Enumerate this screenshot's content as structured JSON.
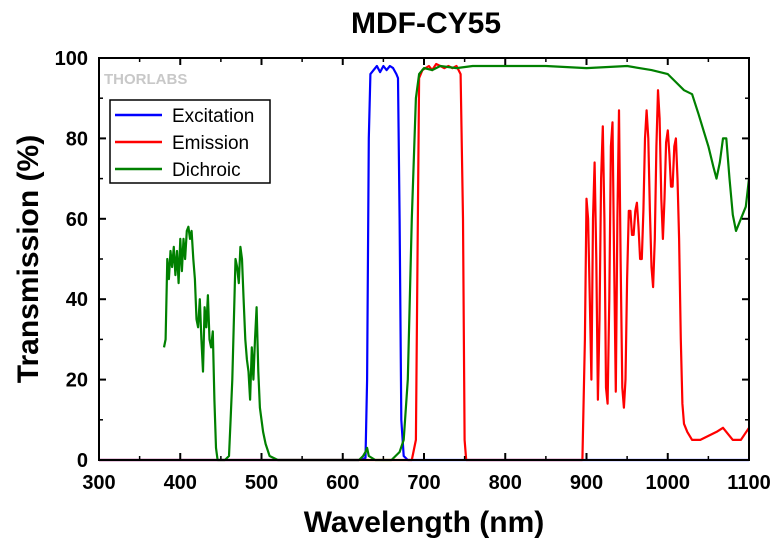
{
  "chart_data": {
    "type": "line",
    "title": "MDF-CY55",
    "xlabel": "Wavelength (nm)",
    "ylabel": "Transmission (%)",
    "xlim": [
      300,
      1100
    ],
    "ylim": [
      0,
      100
    ],
    "xticks": [
      300,
      400,
      500,
      600,
      700,
      800,
      900,
      1000,
      1100
    ],
    "yticks": [
      0,
      20,
      40,
      60,
      80,
      100
    ],
    "grid": false,
    "legend_position": "top-left",
    "watermark": "THORLABS",
    "series": [
      {
        "name": "Excitation",
        "color": "#0000ff",
        "points": [
          [
            300,
            0
          ],
          [
            620,
            0
          ],
          [
            628,
            0.5
          ],
          [
            630,
            20
          ],
          [
            632,
            80
          ],
          [
            634,
            96
          ],
          [
            638,
            97
          ],
          [
            642,
            98
          ],
          [
            646,
            96.5
          ],
          [
            650,
            98
          ],
          [
            654,
            97
          ],
          [
            658,
            98
          ],
          [
            662,
            97.5
          ],
          [
            666,
            96
          ],
          [
            668,
            95
          ],
          [
            670,
            60
          ],
          [
            672,
            10
          ],
          [
            675,
            1
          ],
          [
            680,
            0
          ],
          [
            1100,
            0
          ]
        ]
      },
      {
        "name": "Emission",
        "color": "#ff0000",
        "points": [
          [
            300,
            0
          ],
          [
            685,
            0
          ],
          [
            690,
            5
          ],
          [
            692,
            50
          ],
          [
            694,
            95
          ],
          [
            698,
            97
          ],
          [
            702,
            97.5
          ],
          [
            706,
            98
          ],
          [
            710,
            97
          ],
          [
            715,
            98.5
          ],
          [
            720,
            98
          ],
          [
            725,
            97.5
          ],
          [
            730,
            98
          ],
          [
            735,
            97.5
          ],
          [
            740,
            98
          ],
          [
            745,
            96
          ],
          [
            748,
            60
          ],
          [
            750,
            5
          ],
          [
            752,
            0
          ],
          [
            895,
            0
          ],
          [
            898,
            30
          ],
          [
            900,
            65
          ],
          [
            902,
            60
          ],
          [
            904,
            40
          ],
          [
            906,
            20
          ],
          [
            908,
            60
          ],
          [
            910,
            74
          ],
          [
            912,
            50
          ],
          [
            914,
            15
          ],
          [
            916,
            35
          ],
          [
            918,
            70
          ],
          [
            920,
            83
          ],
          [
            922,
            60
          ],
          [
            924,
            18
          ],
          [
            926,
            14
          ],
          [
            928,
            40
          ],
          [
            930,
            78
          ],
          [
            932,
            84
          ],
          [
            934,
            50
          ],
          [
            936,
            17
          ],
          [
            938,
            60
          ],
          [
            940,
            87
          ],
          [
            942,
            50
          ],
          [
            944,
            18
          ],
          [
            946,
            13
          ],
          [
            948,
            20
          ],
          [
            950,
            45
          ],
          [
            952,
            62
          ],
          [
            954,
            62
          ],
          [
            956,
            56
          ],
          [
            958,
            56
          ],
          [
            960,
            62
          ],
          [
            962,
            64
          ],
          [
            964,
            58
          ],
          [
            966,
            50
          ],
          [
            968,
            50
          ],
          [
            970,
            62
          ],
          [
            972,
            80
          ],
          [
            974,
            87
          ],
          [
            976,
            80
          ],
          [
            978,
            62
          ],
          [
            980,
            48
          ],
          [
            982,
            43
          ],
          [
            984,
            55
          ],
          [
            986,
            78
          ],
          [
            988,
            92
          ],
          [
            990,
            85
          ],
          [
            992,
            65
          ],
          [
            994,
            55
          ],
          [
            996,
            65
          ],
          [
            998,
            79
          ],
          [
            1000,
            82
          ],
          [
            1002,
            76
          ],
          [
            1004,
            68
          ],
          [
            1006,
            68
          ],
          [
            1008,
            78
          ],
          [
            1010,
            80
          ],
          [
            1012,
            70
          ],
          [
            1014,
            55
          ],
          [
            1016,
            30
          ],
          [
            1018,
            14
          ],
          [
            1020,
            9
          ],
          [
            1024,
            7
          ],
          [
            1030,
            5
          ],
          [
            1040,
            5
          ],
          [
            1050,
            6
          ],
          [
            1060,
            7
          ],
          [
            1068,
            8
          ],
          [
            1080,
            5
          ],
          [
            1090,
            5
          ],
          [
            1100,
            8
          ]
        ]
      },
      {
        "name": "Dichroic",
        "color": "#008000",
        "points": [
          [
            380,
            28
          ],
          [
            382,
            30
          ],
          [
            384,
            50
          ],
          [
            386,
            45
          ],
          [
            388,
            52
          ],
          [
            390,
            48
          ],
          [
            392,
            53
          ],
          [
            394,
            46
          ],
          [
            396,
            52
          ],
          [
            398,
            44
          ],
          [
            400,
            55
          ],
          [
            402,
            47
          ],
          [
            404,
            55
          ],
          [
            406,
            50
          ],
          [
            408,
            57
          ],
          [
            410,
            58
          ],
          [
            412,
            55
          ],
          [
            414,
            57
          ],
          [
            416,
            50
          ],
          [
            418,
            45
          ],
          [
            420,
            35
          ],
          [
            422,
            33
          ],
          [
            424,
            40
          ],
          [
            426,
            30
          ],
          [
            428,
            22
          ],
          [
            430,
            38
          ],
          [
            432,
            33
          ],
          [
            434,
            41
          ],
          [
            436,
            30
          ],
          [
            438,
            28
          ],
          [
            440,
            32
          ],
          [
            442,
            15
          ],
          [
            444,
            3
          ],
          [
            446,
            0
          ],
          [
            450,
            0
          ],
          [
            455,
            0
          ],
          [
            460,
            1
          ],
          [
            462,
            10
          ],
          [
            464,
            20
          ],
          [
            466,
            35
          ],
          [
            468,
            50
          ],
          [
            470,
            48
          ],
          [
            472,
            44
          ],
          [
            474,
            53
          ],
          [
            476,
            50
          ],
          [
            478,
            40
          ],
          [
            480,
            30
          ],
          [
            482,
            25
          ],
          [
            484,
            22
          ],
          [
            486,
            15
          ],
          [
            488,
            28
          ],
          [
            490,
            20
          ],
          [
            492,
            30
          ],
          [
            494,
            38
          ],
          [
            496,
            22
          ],
          [
            498,
            13
          ],
          [
            500,
            10
          ],
          [
            502,
            7
          ],
          [
            505,
            4
          ],
          [
            510,
            1
          ],
          [
            520,
            0
          ],
          [
            600,
            0
          ],
          [
            620,
            0
          ],
          [
            625,
            1
          ],
          [
            628,
            2
          ],
          [
            630,
            3
          ],
          [
            632,
            1
          ],
          [
            640,
            0
          ],
          [
            660,
            0
          ],
          [
            670,
            2
          ],
          [
            675,
            5
          ],
          [
            680,
            20
          ],
          [
            685,
            60
          ],
          [
            690,
            90
          ],
          [
            694,
            96
          ],
          [
            700,
            97.5
          ],
          [
            710,
            97
          ],
          [
            720,
            98
          ],
          [
            740,
            97.5
          ],
          [
            760,
            98
          ],
          [
            800,
            98
          ],
          [
            850,
            98
          ],
          [
            900,
            97.5
          ],
          [
            950,
            98
          ],
          [
            980,
            97
          ],
          [
            1000,
            96
          ],
          [
            1010,
            94
          ],
          [
            1020,
            92
          ],
          [
            1030,
            91
          ],
          [
            1038,
            86
          ],
          [
            1044,
            82
          ],
          [
            1050,
            78
          ],
          [
            1056,
            73
          ],
          [
            1060,
            70
          ],
          [
            1064,
            74
          ],
          [
            1068,
            80
          ],
          [
            1072,
            80
          ],
          [
            1076,
            70
          ],
          [
            1080,
            61
          ],
          [
            1084,
            57
          ],
          [
            1090,
            60
          ],
          [
            1096,
            63
          ],
          [
            1100,
            70
          ]
        ]
      }
    ]
  }
}
